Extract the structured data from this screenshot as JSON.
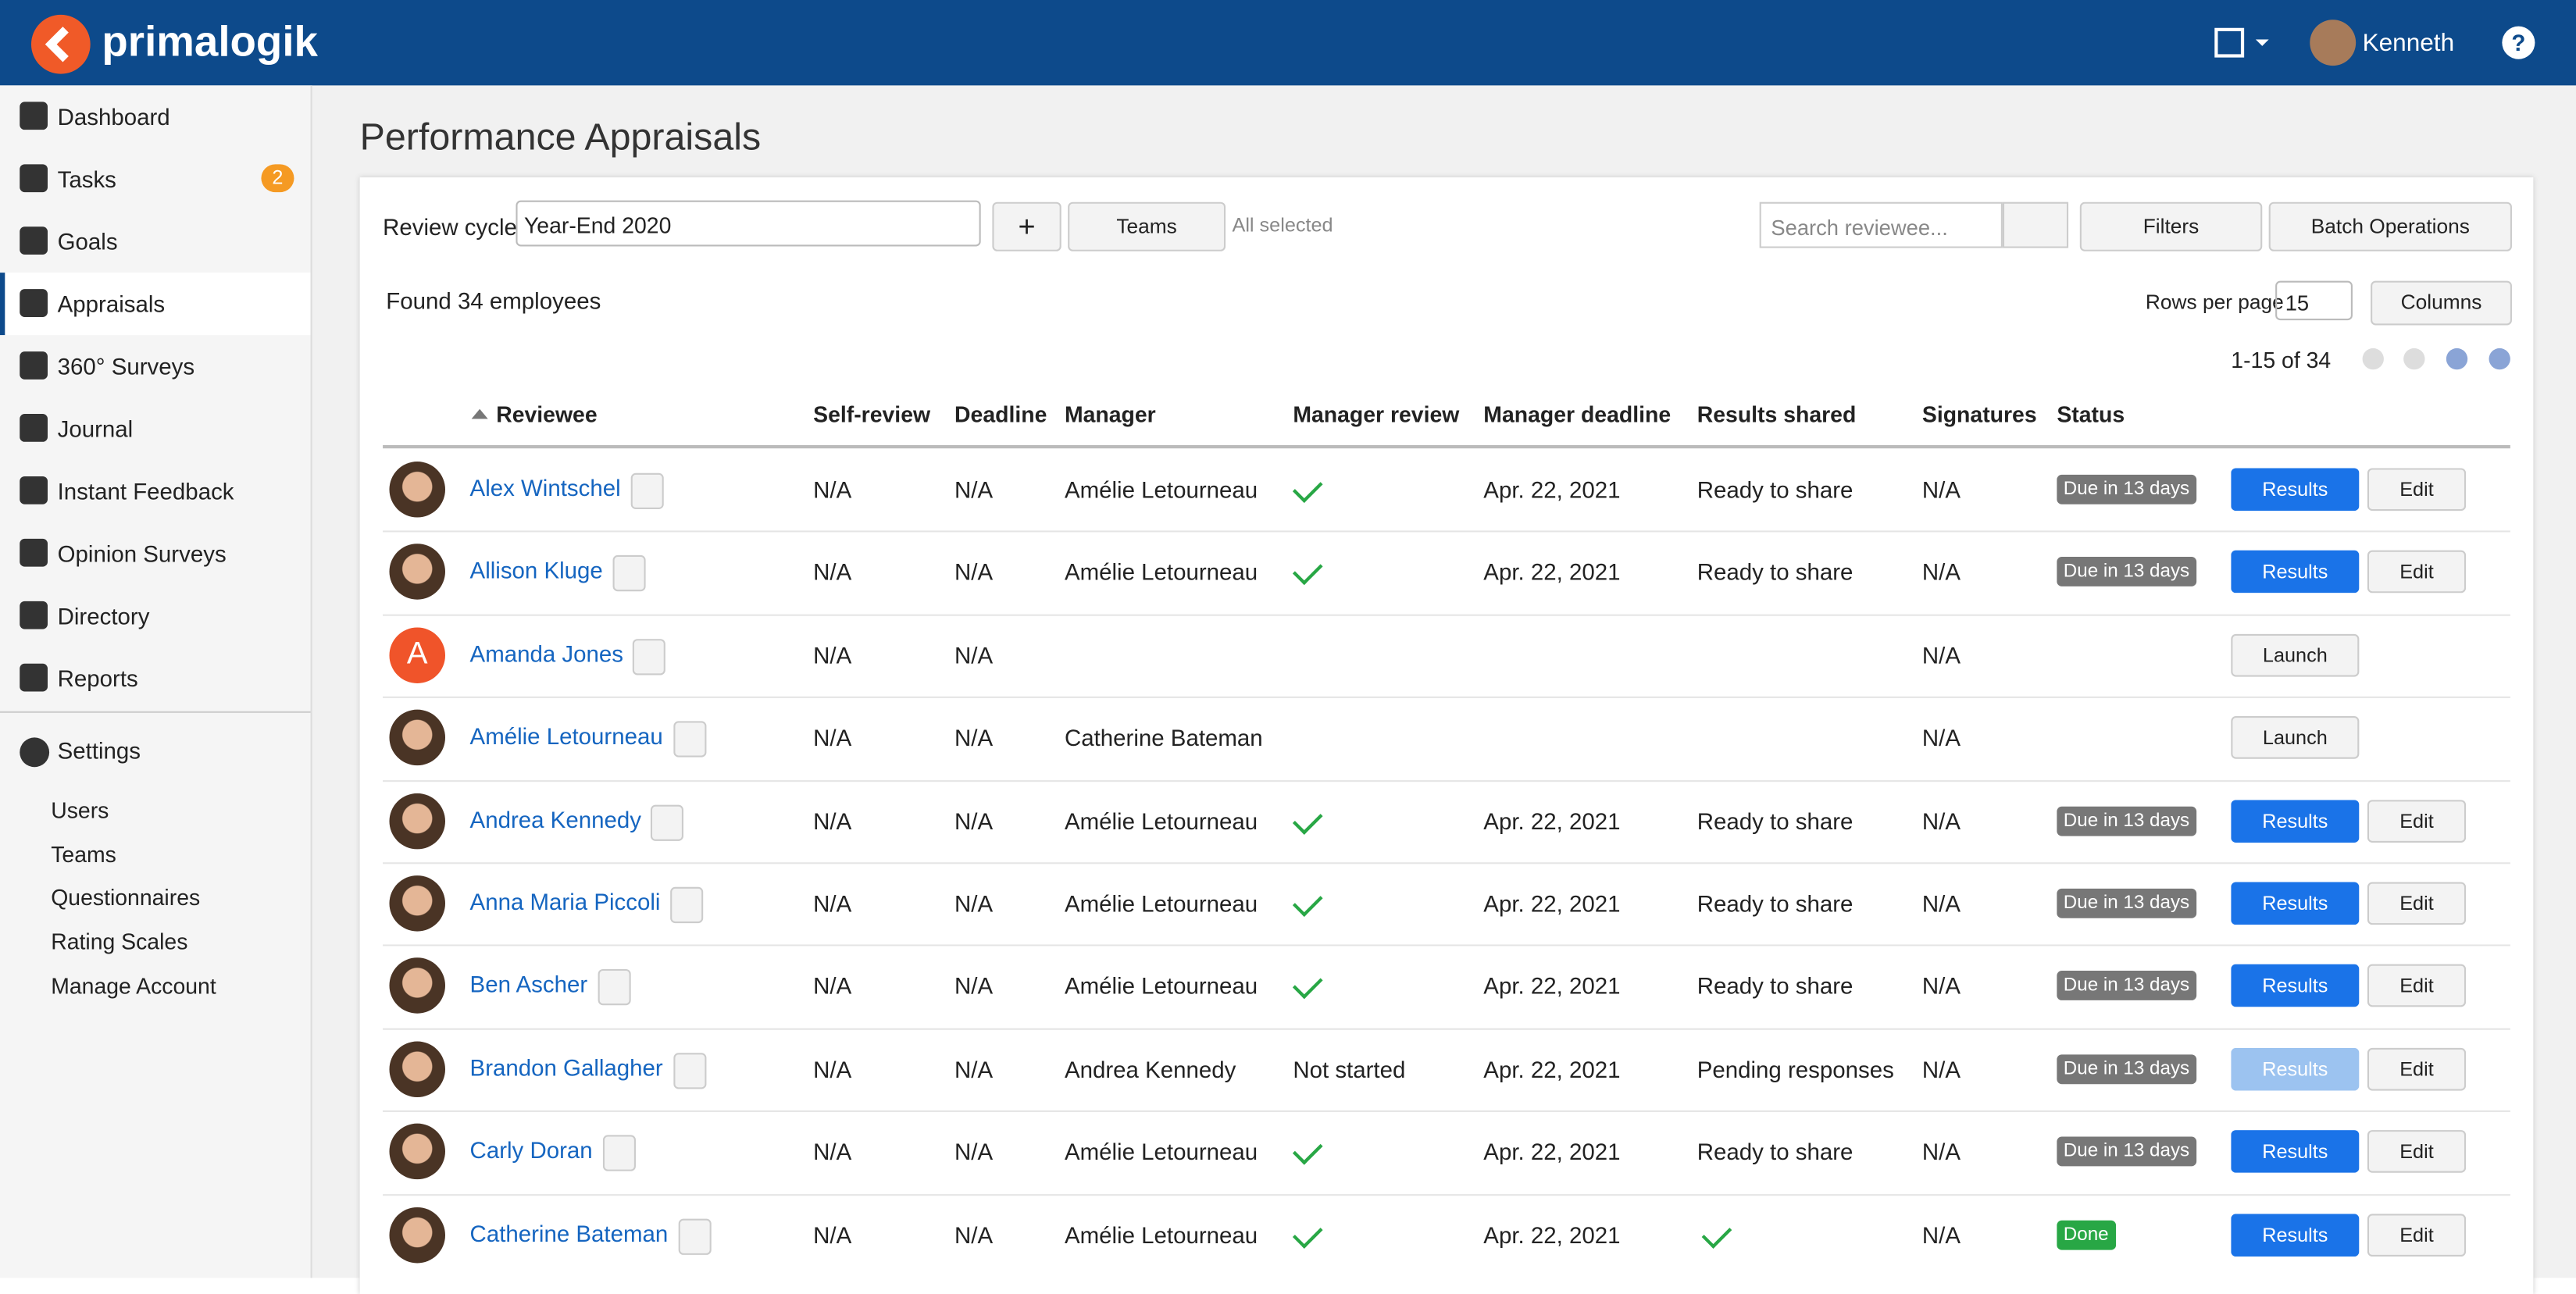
{
  "header": {
    "brand": "primalogik",
    "user": "Kenneth",
    "help": "?"
  },
  "sidebar": {
    "items": [
      {
        "label": "Dashboard"
      },
      {
        "label": "Tasks",
        "badge": "2"
      },
      {
        "label": "Goals"
      },
      {
        "label": "Appraisals",
        "active": true
      },
      {
        "label": "360° Surveys"
      },
      {
        "label": "Journal"
      },
      {
        "label": "Instant Feedback"
      },
      {
        "label": "Opinion Surveys"
      },
      {
        "label": "Directory"
      },
      {
        "label": "Reports"
      }
    ],
    "settings": "Settings",
    "settings_items": [
      "Users",
      "Teams",
      "Questionnaires",
      "Rating Scales",
      "Manage Account"
    ]
  },
  "page": {
    "title": "Performance Appraisals",
    "review_cycle_label": "Review cycle",
    "review_cycle": "Year-End 2020",
    "teams": "Teams",
    "all_selected": "All selected",
    "search_placeholder": "Search reviewee...",
    "filters": "Filters",
    "batch": "Batch Operations",
    "found": "Found 34 employees",
    "rows_per_page_label": "Rows per page",
    "rows_per_page": "15",
    "columns": "Columns",
    "pagination": "1-15 of 34"
  },
  "table": {
    "columns": [
      "Reviewee",
      "Self-review",
      "Deadline",
      "Manager",
      "Manager review",
      "Manager deadline",
      "Results shared",
      "Signatures",
      "Status"
    ],
    "rows": [
      {
        "name": "Alex Wintschel",
        "self": "N/A",
        "deadline": "N/A",
        "manager": "Amélie Letourneau",
        "manager_review": true,
        "manager_deadline": "Apr. 22, 2021",
        "results_shared": "Ready to share",
        "signatures": "N/A",
        "status": "Due in 13 days",
        "actions": [
          "Results",
          "Edit"
        ]
      },
      {
        "name": "Allison Kluge",
        "self": "N/A",
        "deadline": "N/A",
        "manager": "Amélie Letourneau",
        "manager_review": true,
        "manager_deadline": "Apr. 22, 2021",
        "results_shared": "Ready to share",
        "signatures": "N/A",
        "status": "Due in 13 days",
        "actions": [
          "Results",
          "Edit"
        ]
      },
      {
        "name": "Amanda Jones",
        "avatar_letter": "A",
        "self": "N/A",
        "deadline": "N/A",
        "manager": null,
        "manager_review": null,
        "manager_deadline": null,
        "results_shared": null,
        "signatures": "N/A",
        "status": null,
        "actions": [
          "Launch"
        ]
      },
      {
        "name": "Amélie Letourneau",
        "self": "N/A",
        "deadline": "N/A",
        "manager": "Catherine Bateman",
        "manager_review": null,
        "manager_deadline": null,
        "results_shared": null,
        "signatures": "N/A",
        "status": null,
        "actions": [
          "Launch"
        ]
      },
      {
        "name": "Andrea Kennedy",
        "self": "N/A",
        "deadline": "N/A",
        "manager": "Amélie Letourneau",
        "manager_review": true,
        "manager_deadline": "Apr. 22, 2021",
        "results_shared": "Ready to share",
        "signatures": "N/A",
        "status": "Due in 13 days",
        "actions": [
          "Results",
          "Edit"
        ]
      },
      {
        "name": "Anna Maria Piccoli",
        "self": "N/A",
        "deadline": "N/A",
        "manager": "Amélie Letourneau",
        "manager_review": true,
        "manager_deadline": "Apr. 22, 2021",
        "results_shared": "Ready to share",
        "signatures": "N/A",
        "status": "Due in 13 days",
        "actions": [
          "Results",
          "Edit"
        ]
      },
      {
        "name": "Ben Ascher",
        "self": "N/A",
        "deadline": "N/A",
        "manager": "Amélie Letourneau",
        "manager_review": true,
        "manager_deadline": "Apr. 22, 2021",
        "results_shared": "Ready to share",
        "signatures": "N/A",
        "status": "Due in 13 days",
        "actions": [
          "Results",
          "Edit"
        ]
      },
      {
        "name": "Brandon Gallagher",
        "self": "N/A",
        "deadline": "N/A",
        "manager": "Andrea Kennedy",
        "manager_review": "Not started",
        "manager_deadline": "Apr. 22, 2021",
        "results_shared": "Pending responses",
        "signatures": "N/A",
        "status": "Due in 13 days",
        "results_disabled": true,
        "actions": [
          "Results",
          "Edit"
        ]
      },
      {
        "name": "Carly Doran",
        "self": "N/A",
        "deadline": "N/A",
        "manager": "Amélie Letourneau",
        "manager_review": true,
        "manager_deadline": "Apr. 22, 2021",
        "results_shared": "Ready to share",
        "signatures": "N/A",
        "status": "Due in 13 days",
        "actions": [
          "Results",
          "Edit"
        ]
      },
      {
        "name": "Catherine Bateman",
        "self": "N/A",
        "deadline": "N/A",
        "manager": "Amélie Letourneau",
        "manager_review": true,
        "manager_deadline": "Apr. 22, 2021",
        "results_shared": true,
        "signatures": "N/A",
        "status": "Done",
        "status_done": true,
        "actions": [
          "Results",
          "Edit"
        ]
      }
    ]
  }
}
